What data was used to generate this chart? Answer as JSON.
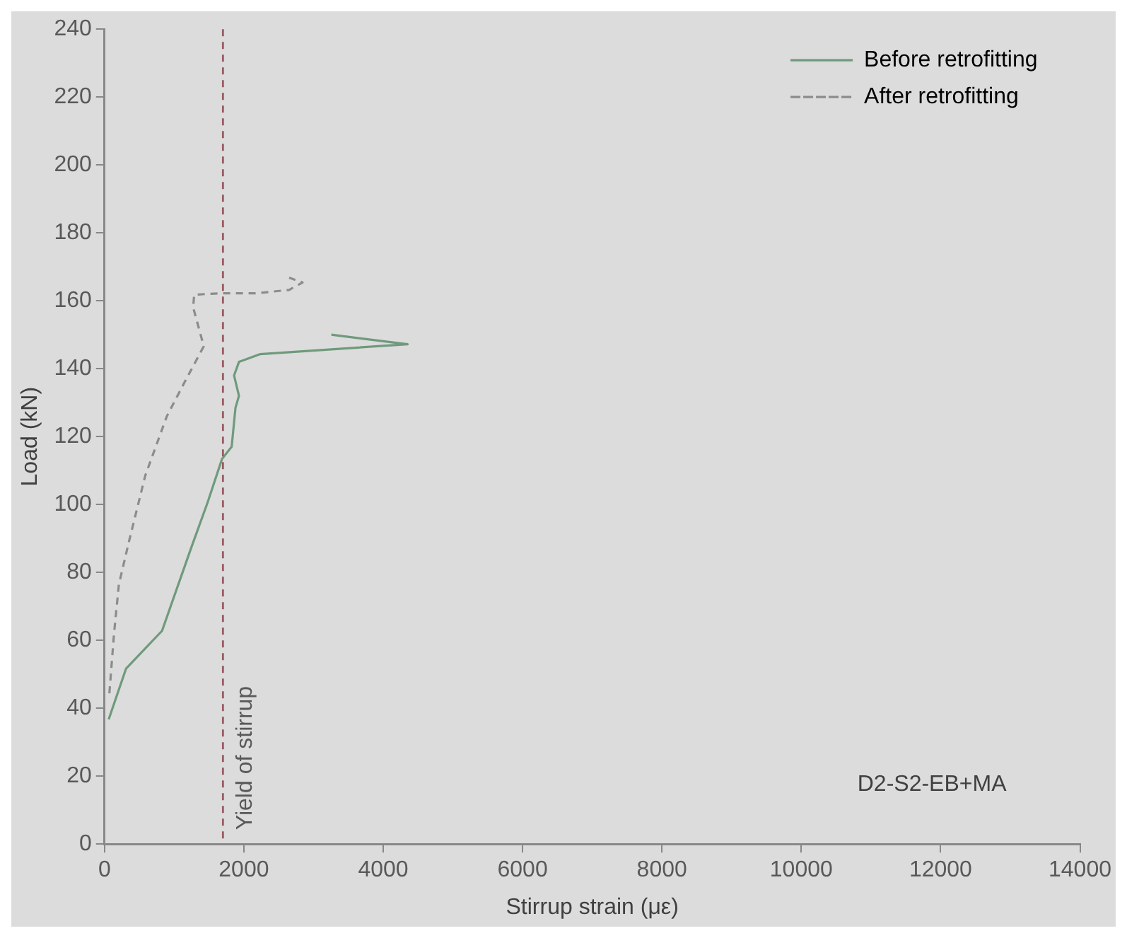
{
  "chart_data": {
    "type": "line",
    "xlabel": "Stirrup strain (με)",
    "ylabel": "Load (kN)",
    "xlim": [
      0,
      14000
    ],
    "xticks": [
      0,
      2000,
      4000,
      6000,
      8000,
      10000,
      12000,
      14000
    ],
    "ylim": [
      0,
      240
    ],
    "yticks": [
      0,
      20,
      40,
      60,
      80,
      100,
      120,
      140,
      160,
      180,
      200,
      220,
      240
    ],
    "grid": false,
    "legend": "top right",
    "marker": "none",
    "series": [
      {
        "name": "Before retrofitting",
        "color": "#6f9a7c",
        "line_style": "solid",
        "x": [
          60,
          310,
          826,
          1240,
          1480,
          1686,
          1825,
          1880,
          1930,
          1860,
          1930,
          2236,
          4350,
          3256
        ],
        "values": [
          36.7,
          51.7,
          62.8,
          87,
          100.6,
          113.4,
          117,
          128.5,
          132,
          138,
          142,
          144.3,
          147.2,
          150
        ]
      },
      {
        "name": "After retrofitting",
        "color": "#8c8c8c",
        "line_style": "dashed",
        "x": [
          70,
          137,
          206,
          344,
          585,
          895,
          1136,
          1425,
          1273,
          1287,
          1652,
          2168,
          2650,
          2842,
          2650
        ],
        "values": [
          44.4,
          62,
          76.4,
          88.5,
          108.5,
          126,
          135.5,
          146.6,
          158,
          161.8,
          162.2,
          162.2,
          163.2,
          165.4,
          166.8
        ]
      }
    ],
    "ref_lines": [
      {
        "axis": "x",
        "value": 1700,
        "label": "Yield of stirrup",
        "color": "#9a5a62",
        "line_style": "dashed"
      }
    ],
    "annotations": [
      "D2-S2-EB+MA"
    ]
  }
}
